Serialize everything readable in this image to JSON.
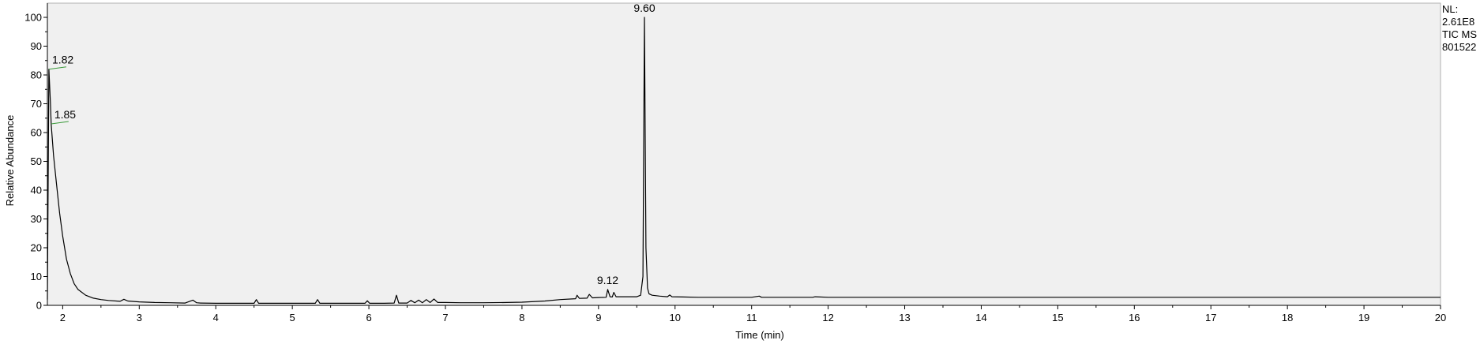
{
  "info": {
    "nl_label": "NL:",
    "nl_value": "2.61E8",
    "trace_label": "TIC  MS",
    "file_id": "801522"
  },
  "colors": {
    "plot_background": "#f0f0f0",
    "trace": "#000000",
    "annotation_tick": "#3a9a3a",
    "axis": "#000000"
  },
  "chart_data": {
    "type": "line",
    "title": "",
    "xlabel": "Time (min)",
    "ylabel": "Relative Abundance",
    "xlim": [
      1.8,
      20
    ],
    "ylim": [
      0,
      100
    ],
    "x_ticks": [
      2,
      3,
      4,
      5,
      6,
      7,
      8,
      9,
      10,
      11,
      12,
      13,
      14,
      15,
      16,
      17,
      18,
      19,
      20
    ],
    "y_ticks": [
      0,
      10,
      20,
      30,
      40,
      50,
      60,
      70,
      80,
      90,
      100
    ],
    "grid": false,
    "series": [
      {
        "x": [
          1.8,
          1.82,
          1.84,
          1.85,
          1.88,
          1.92,
          1.96,
          2.0,
          2.05,
          2.1,
          2.15,
          2.2,
          2.3,
          2.4,
          2.5,
          2.6,
          2.75,
          2.8,
          2.85,
          3.0,
          3.2,
          3.4,
          3.6,
          3.7,
          3.75,
          3.8,
          4.0,
          4.2,
          4.5,
          4.53,
          4.56,
          5.0,
          5.3,
          5.33,
          5.36,
          5.6,
          5.95,
          5.98,
          6.01,
          6.2,
          6.33,
          6.36,
          6.39,
          6.5,
          6.55,
          6.6,
          6.65,
          6.7,
          6.75,
          6.8,
          6.85,
          6.9,
          7.0,
          7.2,
          7.5,
          7.8,
          8.0,
          8.3,
          8.5,
          8.7,
          8.72,
          8.75,
          8.85,
          8.88,
          8.92,
          9.0,
          9.1,
          9.12,
          9.15,
          9.18,
          9.2,
          9.23,
          9.3,
          9.4,
          9.5,
          9.55,
          9.58,
          9.6,
          9.62,
          9.64,
          9.66,
          9.7,
          9.8,
          9.9,
          9.93,
          9.96,
          10.1,
          10.3,
          10.6,
          11.0,
          11.1,
          11.13,
          11.2,
          11.8,
          11.83,
          12.0,
          13.0,
          14.0,
          15.0,
          16.0,
          17.0,
          18.0,
          19.0,
          20.0
        ],
        "y": [
          2,
          82,
          70,
          63,
          52,
          42,
          32,
          24,
          16,
          11,
          7.5,
          5.5,
          3.5,
          2.5,
          2,
          1.7,
          1.4,
          2.1,
          1.5,
          1.2,
          1.0,
          0.9,
          0.8,
          1.8,
          0.9,
          0.8,
          0.7,
          0.7,
          0.7,
          2.0,
          0.7,
          0.7,
          0.7,
          2.0,
          0.7,
          0.7,
          0.7,
          1.6,
          0.7,
          0.7,
          0.8,
          3.5,
          0.8,
          0.8,
          1.7,
          0.9,
          1.8,
          0.9,
          2.0,
          1.0,
          2.2,
          1.0,
          1.0,
          0.9,
          0.9,
          1.0,
          1.1,
          1.5,
          2.0,
          2.3,
          3.5,
          2.4,
          2.5,
          3.8,
          2.6,
          2.7,
          2.8,
          5.5,
          3.0,
          2.9,
          4.5,
          3.0,
          3.0,
          3.0,
          3.0,
          3.5,
          10,
          100,
          20,
          6,
          4,
          3.5,
          3.2,
          3.0,
          3.6,
          3.0,
          2.9,
          2.8,
          2.8,
          2.8,
          3.2,
          2.8,
          2.8,
          2.8,
          3.0,
          2.8,
          2.8,
          2.8,
          2.8,
          2.8,
          2.8,
          2.8,
          2.8,
          2.8
        ]
      }
    ],
    "annotations": [
      {
        "text": "1.82",
        "x": 1.82,
        "y": 82,
        "marker": "tick"
      },
      {
        "text": "1.85",
        "x": 1.85,
        "y": 63,
        "marker": "tick"
      },
      {
        "text": "9.12",
        "x": 9.12,
        "y": 5.5,
        "marker": "none"
      },
      {
        "text": "9.60",
        "x": 9.6,
        "y": 100,
        "marker": "none"
      }
    ]
  }
}
